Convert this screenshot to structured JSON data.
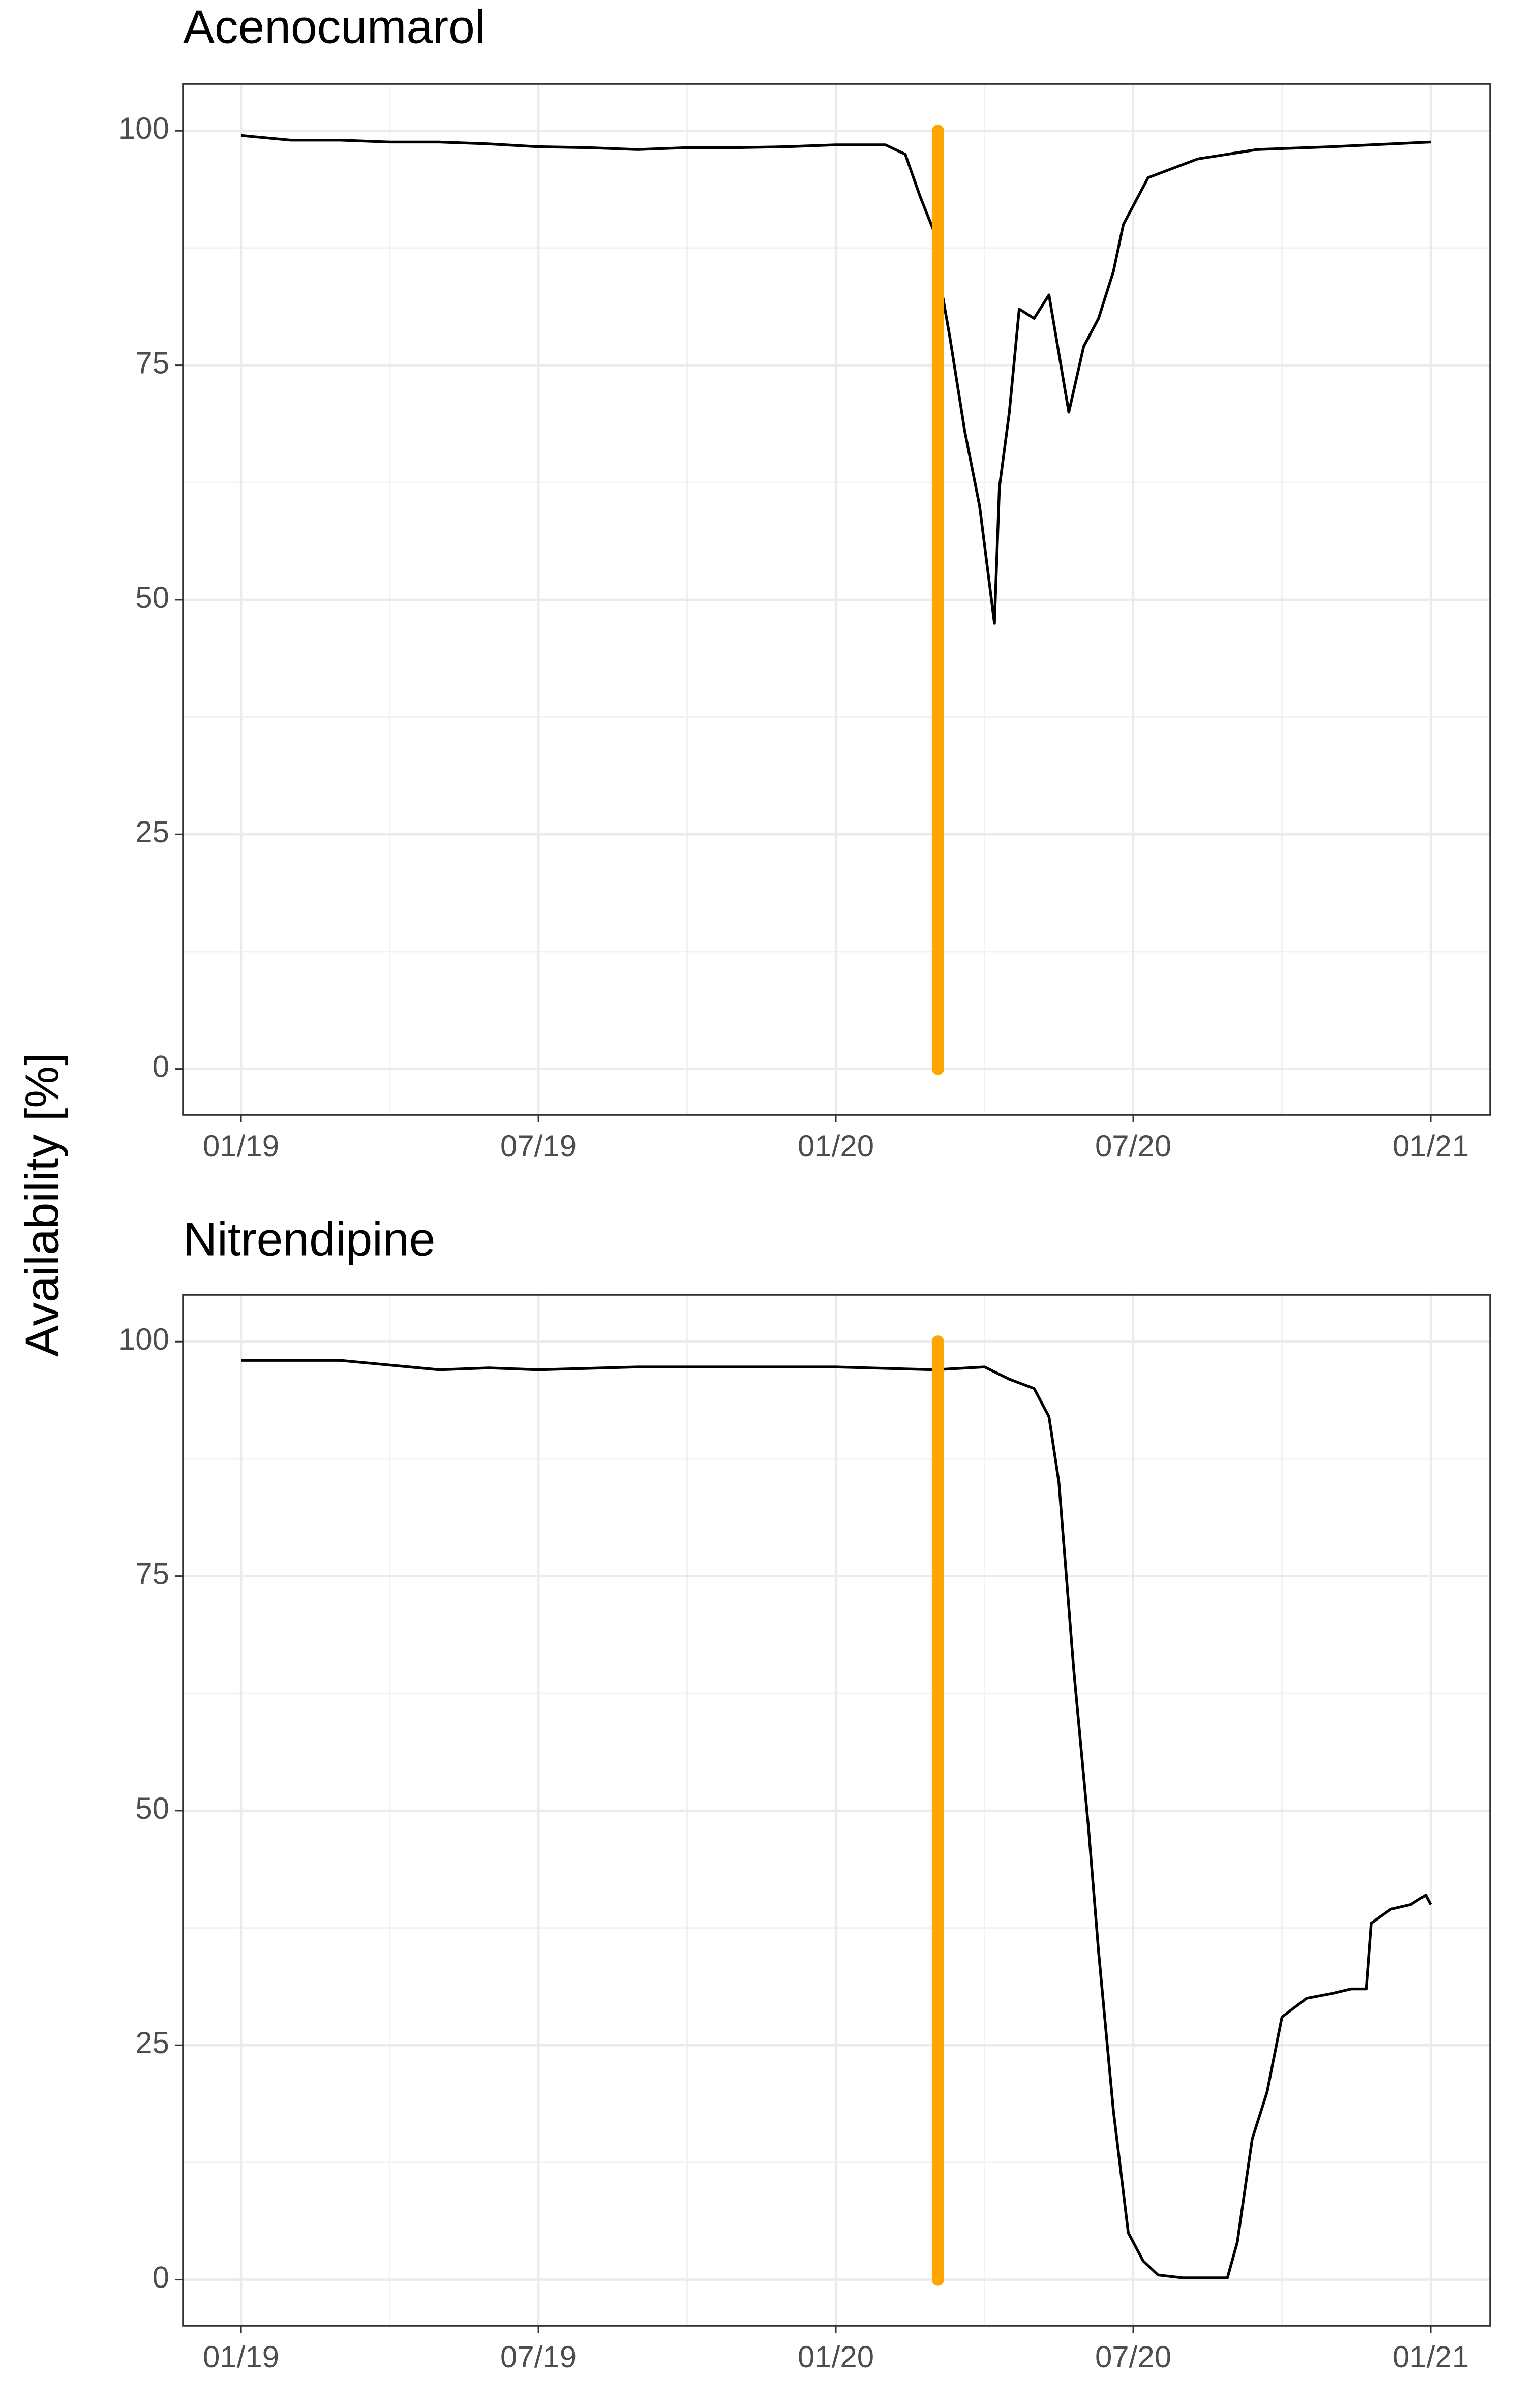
{
  "y_axis_label": "Availability [%]",
  "chart_data": [
    {
      "type": "line",
      "title": "Acenocumarol",
      "x": [
        0,
        1,
        2,
        3,
        4,
        5,
        6,
        7,
        8,
        9,
        10,
        11,
        12,
        13,
        13.4,
        13.7,
        14.0,
        14.1,
        14.3,
        14.6,
        14.9,
        15.2,
        15.3,
        15.5,
        15.7,
        16.0,
        16.3,
        16.7,
        17.0,
        17.3,
        17.6,
        17.8,
        18.3,
        19.3,
        20.5,
        22,
        24
      ],
      "series": [
        {
          "name": "Acenocumarol",
          "color": "#000000",
          "values": [
            99.5,
            99,
            99,
            98.8,
            98.8,
            98.6,
            98.3,
            98.2,
            98,
            98.2,
            98.2,
            98.3,
            98.5,
            98.5,
            97.5,
            93,
            89,
            84,
            78,
            68,
            60,
            47.5,
            62,
            70,
            81,
            80,
            82.5,
            70,
            77,
            80,
            85,
            90,
            95,
            97,
            98,
            98.3,
            98.8
          ]
        }
      ],
      "vline": {
        "x": 14.06,
        "y": [
          0,
          100
        ],
        "color": "#FFA500"
      },
      "xlim": [
        -1.17,
        25.2
      ],
      "ylim": [
        -4.9,
        105
      ],
      "xticks": [
        {
          "value": 0,
          "label": "01/19"
        },
        {
          "value": 6,
          "label": "07/19"
        },
        {
          "value": 12,
          "label": "01/20"
        },
        {
          "value": 18,
          "label": "07/20"
        },
        {
          "value": 24,
          "label": "01/21"
        }
      ],
      "minor_xticks": [
        3,
        9,
        15,
        21
      ],
      "yticks": [
        0,
        25,
        50,
        75,
        100
      ],
      "minor_yticks": [
        12.5,
        37.5,
        62.5,
        87.5
      ],
      "grid": true
    },
    {
      "type": "line",
      "title": "Nitrendipine",
      "x": [
        0,
        1,
        2,
        3,
        4,
        5,
        6,
        8,
        10,
        12,
        14,
        15,
        15.5,
        16.0,
        16.3,
        16.5,
        16.8,
        17.1,
        17.3,
        17.6,
        17.9,
        18.2,
        18.5,
        19,
        19.9,
        20.1,
        20.4,
        20.7,
        21,
        21.5,
        22,
        22.4,
        22.7,
        22.8,
        23.2,
        23.6,
        23.9,
        24
      ],
      "series": [
        {
          "name": "Nitrendipine",
          "color": "#000000",
          "values": [
            98,
            98,
            98,
            97.5,
            97,
            97.2,
            97,
            97.3,
            97.3,
            97.3,
            97,
            97.3,
            96,
            95,
            92,
            85,
            65,
            48,
            35,
            18,
            5,
            2,
            0.5,
            0.2,
            0.2,
            4,
            15,
            20,
            28,
            30,
            30.5,
            31,
            31,
            38,
            39.5,
            40,
            41,
            40
          ]
        }
      ],
      "vline": {
        "x": 14.06,
        "y": [
          0,
          100
        ],
        "color": "#FFA500"
      },
      "xlim": [
        -1.17,
        25.2
      ],
      "ylim": [
        -4.9,
        105
      ],
      "xticks": [
        {
          "value": 0,
          "label": "01/19"
        },
        {
          "value": 6,
          "label": "07/19"
        },
        {
          "value": 12,
          "label": "01/20"
        },
        {
          "value": 18,
          "label": "07/20"
        },
        {
          "value": 24,
          "label": "01/21"
        }
      ],
      "minor_xticks": [
        3,
        9,
        15,
        21
      ],
      "yticks": [
        0,
        25,
        50,
        75,
        100
      ],
      "minor_yticks": [
        12.5,
        37.5,
        62.5,
        87.5
      ],
      "grid": true
    }
  ]
}
